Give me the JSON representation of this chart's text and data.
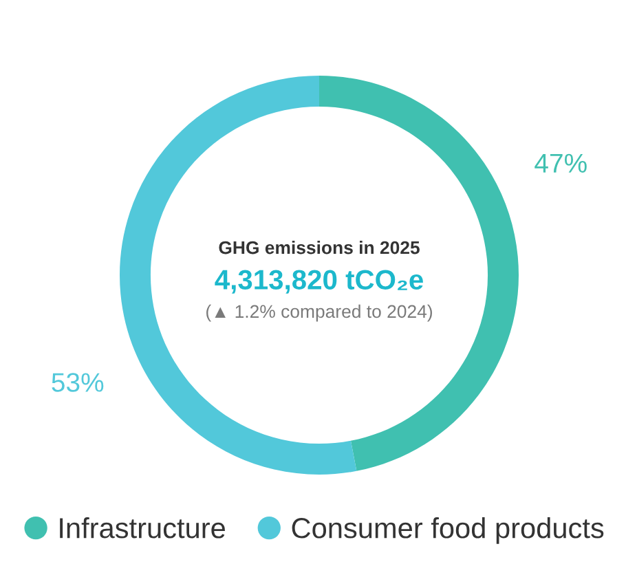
{
  "chart_data": {
    "type": "donut",
    "title": "GHG emissions in 2025",
    "subtitle": "4,313,820 tCO₂e",
    "annotations": [
      "(▲ 1.2% compared to 2024)"
    ],
    "categories": [
      "Infrastructure",
      "Consumer food products"
    ],
    "values": [
      47,
      53
    ],
    "colors": [
      "#40c0b0",
      "#52c8da"
    ],
    "value_labels": [
      "47%",
      "53%"
    ],
    "legend": "bottom"
  }
}
